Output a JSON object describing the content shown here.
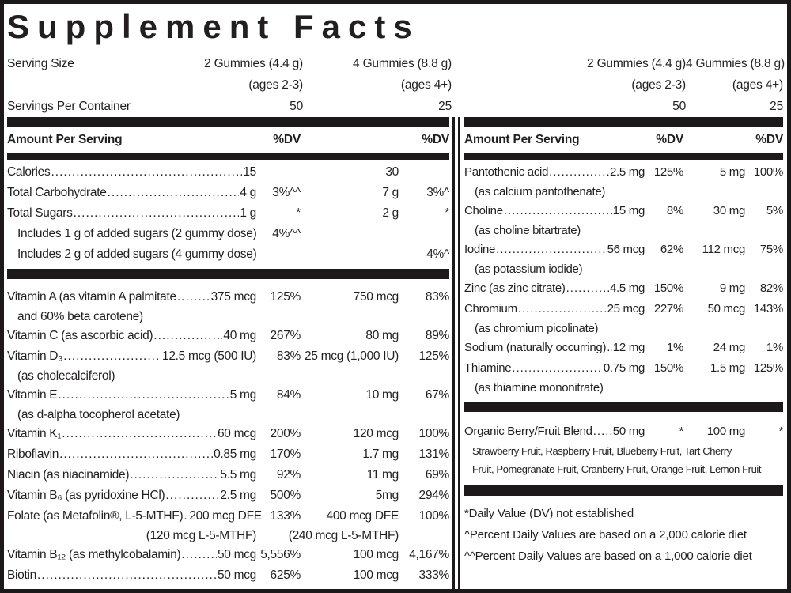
{
  "title": "Supplement Facts",
  "colors": {
    "text": "#231f20",
    "bar": "#1d191a",
    "background": "#ffffff"
  },
  "serving": {
    "size_label": "Serving Size",
    "container_label": "Servings Per Container",
    "dose1": {
      "size": "2 Gummies (4.4 g)",
      "ages": "(ages 2-3)",
      "servings": "50"
    },
    "dose2": {
      "size": "4 Gummies (8.8 g)",
      "ages": "(ages 4+)",
      "servings": "25"
    }
  },
  "table_header": {
    "amount_label": "Amount Per Serving",
    "dv_label": "%DV"
  },
  "left_panel": {
    "sections": [
      {
        "rows": [
          {
            "name": "Calories",
            "leader": true,
            "amount1": "15",
            "dv1": "",
            "amount2": "30",
            "dv2": ""
          },
          {
            "name": "Total Carbohydrate",
            "leader": true,
            "amount1": "4 g",
            "dv1": "3%^^",
            "amount2": "7 g",
            "dv2": "3%^"
          },
          {
            "name": "Total Sugars",
            "leader": true,
            "amount1": "1 g",
            "dv1": "*",
            "amount2": "2 g",
            "dv2": "*"
          },
          {
            "name": "Includes 1 g of added sugars (2 gummy dose)",
            "indent": true,
            "dv1": "4%^^",
            "amount2": "",
            "dv2": ""
          },
          {
            "name": "Includes 2 g of added sugars (4 gummy dose)",
            "indent": true,
            "dv1": "",
            "amount2": "",
            "dv2": "4%^"
          }
        ]
      },
      {
        "rows": [
          {
            "name": "Vitamin A (as vitamin A palmitate",
            "leader": true,
            "amount1": "375 mcg",
            "dv1": "125%",
            "amount2": "750 mcg",
            "dv2": "83%",
            "sub": [
              "and 60% beta carotene)"
            ]
          },
          {
            "name": "Vitamin C (as ascorbic acid)",
            "leader": true,
            "amount1": "40 mg",
            "dv1": "267%",
            "amount2": "80 mg",
            "dv2": "89%"
          },
          {
            "name": "Vitamin D₃",
            "leader": true,
            "amount1": "12.5 mcg (500 IU)",
            "dv1": "83%",
            "amount2": "25 mcg (1,000 IU)",
            "dv2": "125%",
            "sub": [
              "(as cholecalciferol)"
            ]
          },
          {
            "name": "Vitamin E",
            "leader": true,
            "amount1": "5 mg",
            "dv1": "84%",
            "amount2": "10 mg",
            "dv2": "67%",
            "sub": [
              "(as d-alpha tocopherol acetate)"
            ]
          },
          {
            "name": "Vitamin K₁",
            "leader": true,
            "amount1": "60 mcg",
            "dv1": "200%",
            "amount2": "120 mcg",
            "dv2": "100%"
          },
          {
            "name": "Riboflavin",
            "leader": true,
            "amount1": "0.85 mg",
            "dv1": "170%",
            "amount2": "1.7 mg",
            "dv2": "131%"
          },
          {
            "name": "Niacin (as niacinamide)",
            "leader": true,
            "amount1": "5.5 mg",
            "dv1": "92%",
            "amount2": "11 mg",
            "dv2": "69%"
          },
          {
            "name": "Vitamin B₆ (as pyridoxine HCl)",
            "leader": true,
            "amount1": "2.5 mg",
            "dv1": "500%",
            "amount2": "5mg",
            "dv2": "294%"
          },
          {
            "name": "Folate (as Metafolin®, L-5-MTHF)",
            "leader": true,
            "amount1": "200 mcg DFE",
            "dv1": "133%",
            "amount2": "400 mcg DFE",
            "dv2": "100%",
            "subcols": {
              "col1": "(120 mcg L-5-MTHF)",
              "col2": "(240 mcg L-5-MTHF)"
            }
          },
          {
            "name": "Vitamin B₁₂ (as methylcobalamin)",
            "leader": true,
            "amount1": "50 mcg",
            "dv1": "5,556%",
            "amount2": "100 mcg",
            "dv2": "4,167%"
          },
          {
            "name": "Biotin",
            "leader": true,
            "amount1": "50 mcg",
            "dv1": "625%",
            "amount2": "100 mcg",
            "dv2": "333%"
          }
        ]
      }
    ]
  },
  "right_panel": {
    "sections": [
      {
        "rows": [
          {
            "name": "Pantothenic acid",
            "leader": true,
            "amount1": "2.5 mg",
            "dv1": "125%",
            "amount2": "5 mg",
            "dv2": "100%",
            "sub": [
              "(as calcium pantothenate)"
            ]
          },
          {
            "name": "Choline",
            "leader": true,
            "amount1": "15 mg",
            "dv1": "8%",
            "amount2": "30 mg",
            "dv2": "5%",
            "sub": [
              "(as choline bitartrate)"
            ]
          },
          {
            "name": "Iodine",
            "leader": true,
            "amount1": "56 mcg",
            "dv1": "62%",
            "amount2": "112 mcg",
            "dv2": "75%",
            "sub": [
              "(as potassium iodide)"
            ]
          },
          {
            "name": "Zinc (as zinc citrate)",
            "leader": true,
            "amount1": "4.5 mg",
            "dv1": "150%",
            "amount2": "9 mg",
            "dv2": "82%"
          },
          {
            "name": "Chromium",
            "leader": true,
            "amount1": "25 mcg",
            "dv1": "227%",
            "amount2": "50 mcg",
            "dv2": "143%",
            "sub": [
              "(as chromium picolinate)"
            ]
          },
          {
            "name": "Sodium (naturally occurring)",
            "leader": true,
            "amount1": "12 mg",
            "dv1": "1%",
            "amount2": "24 mg",
            "dv2": "1%"
          },
          {
            "name": "Thiamine",
            "leader": true,
            "amount1": "0.75 mg",
            "dv1": "150%",
            "amount2": "1.5 mg",
            "dv2": "125%",
            "sub": [
              "(as thiamine mononitrate)"
            ]
          }
        ]
      },
      {
        "rows": [
          {
            "name": "Organic Berry/Fruit Blend",
            "leader": true,
            "amount1": "50 mg",
            "dv1": "*",
            "amount2": "100 mg",
            "dv2": "*",
            "sub_small": true,
            "sub": [
              "Strawberry Fruit, Raspberry Fruit, Blueberry Fruit, Tart Cherry",
              "Fruit, Pomegranate Fruit, Cranberry Fruit, Orange Fruit, Lemon Fruit"
            ]
          }
        ]
      }
    ],
    "footnotes": [
      "*Daily Value (DV) not established",
      "^Percent Daily Values are based on a 2,000 calorie diet",
      "^^Percent Daily Values are based on a 1,000 calorie diet"
    ]
  }
}
